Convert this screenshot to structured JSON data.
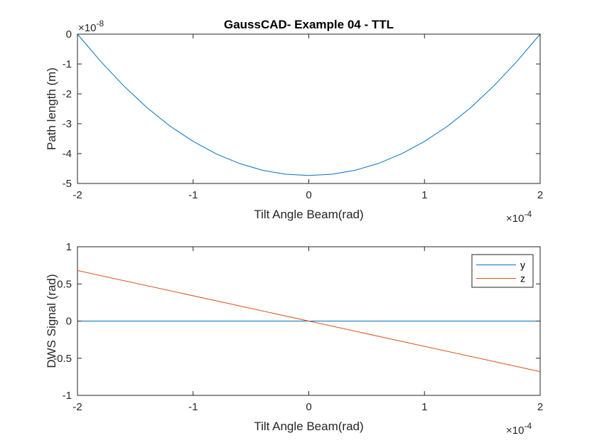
{
  "chart_data": [
    {
      "type": "line",
      "title": "GaussCAD- Example 04 - TTL",
      "xlabel": "Tilt Angle Beam(rad)",
      "ylabel": "Path length (m)",
      "x_multiplier": "×10^-4",
      "y_multiplier": "×10^-8",
      "xlim": [
        -2,
        2
      ],
      "ylim": [
        -5,
        0
      ],
      "xticks": [
        -2,
        -1,
        0,
        1,
        2
      ],
      "yticks": [
        -5,
        -4,
        -3,
        -2,
        -1,
        0
      ],
      "xtick_labels": [
        "-2",
        "-1",
        "0",
        "1",
        "2"
      ],
      "ytick_labels": [
        "-5",
        "-4",
        "-3",
        "-2",
        "-1",
        "0"
      ],
      "grid": false,
      "series": [
        {
          "color": "#0072BD",
          "x": [
            -2.0,
            -1.8,
            -1.6,
            -1.4,
            -1.2,
            -1.0,
            -0.8,
            -0.6,
            -0.4,
            -0.2,
            0.0,
            0.2,
            0.4,
            0.6,
            0.8,
            1.0,
            1.2,
            1.4,
            1.6,
            1.8,
            2.0
          ],
          "y": [
            0.0,
            -0.91,
            -1.73,
            -2.46,
            -3.08,
            -3.59,
            -4.01,
            -4.33,
            -4.56,
            -4.69,
            -4.73,
            -4.69,
            -4.56,
            -4.33,
            -4.01,
            -3.59,
            -3.08,
            -2.46,
            -1.73,
            -0.91,
            0.0
          ]
        }
      ]
    },
    {
      "type": "line",
      "title": "",
      "xlabel": "Tilt Angle Beam(rad)",
      "ylabel": "DWS Signal (rad)",
      "x_multiplier": "×10^-4",
      "xlim": [
        -2,
        2
      ],
      "ylim": [
        -1,
        1
      ],
      "xticks": [
        -2,
        -1,
        0,
        1,
        2
      ],
      "yticks": [
        -1,
        -0.5,
        0,
        0.5,
        1
      ],
      "xtick_labels": [
        "-2",
        "-1",
        "0",
        "1",
        "2"
      ],
      "ytick_labels": [
        "-1",
        "-0.5",
        "0",
        "0.5",
        "1"
      ],
      "grid": false,
      "legend": "top-right",
      "series": [
        {
          "name": "y",
          "color": "#0072BD",
          "x": [
            -2,
            2
          ],
          "y": [
            0,
            0
          ]
        },
        {
          "name": "z",
          "color": "#D95319",
          "x": [
            -2,
            2
          ],
          "y": [
            0.68,
            -0.68
          ]
        }
      ]
    }
  ]
}
